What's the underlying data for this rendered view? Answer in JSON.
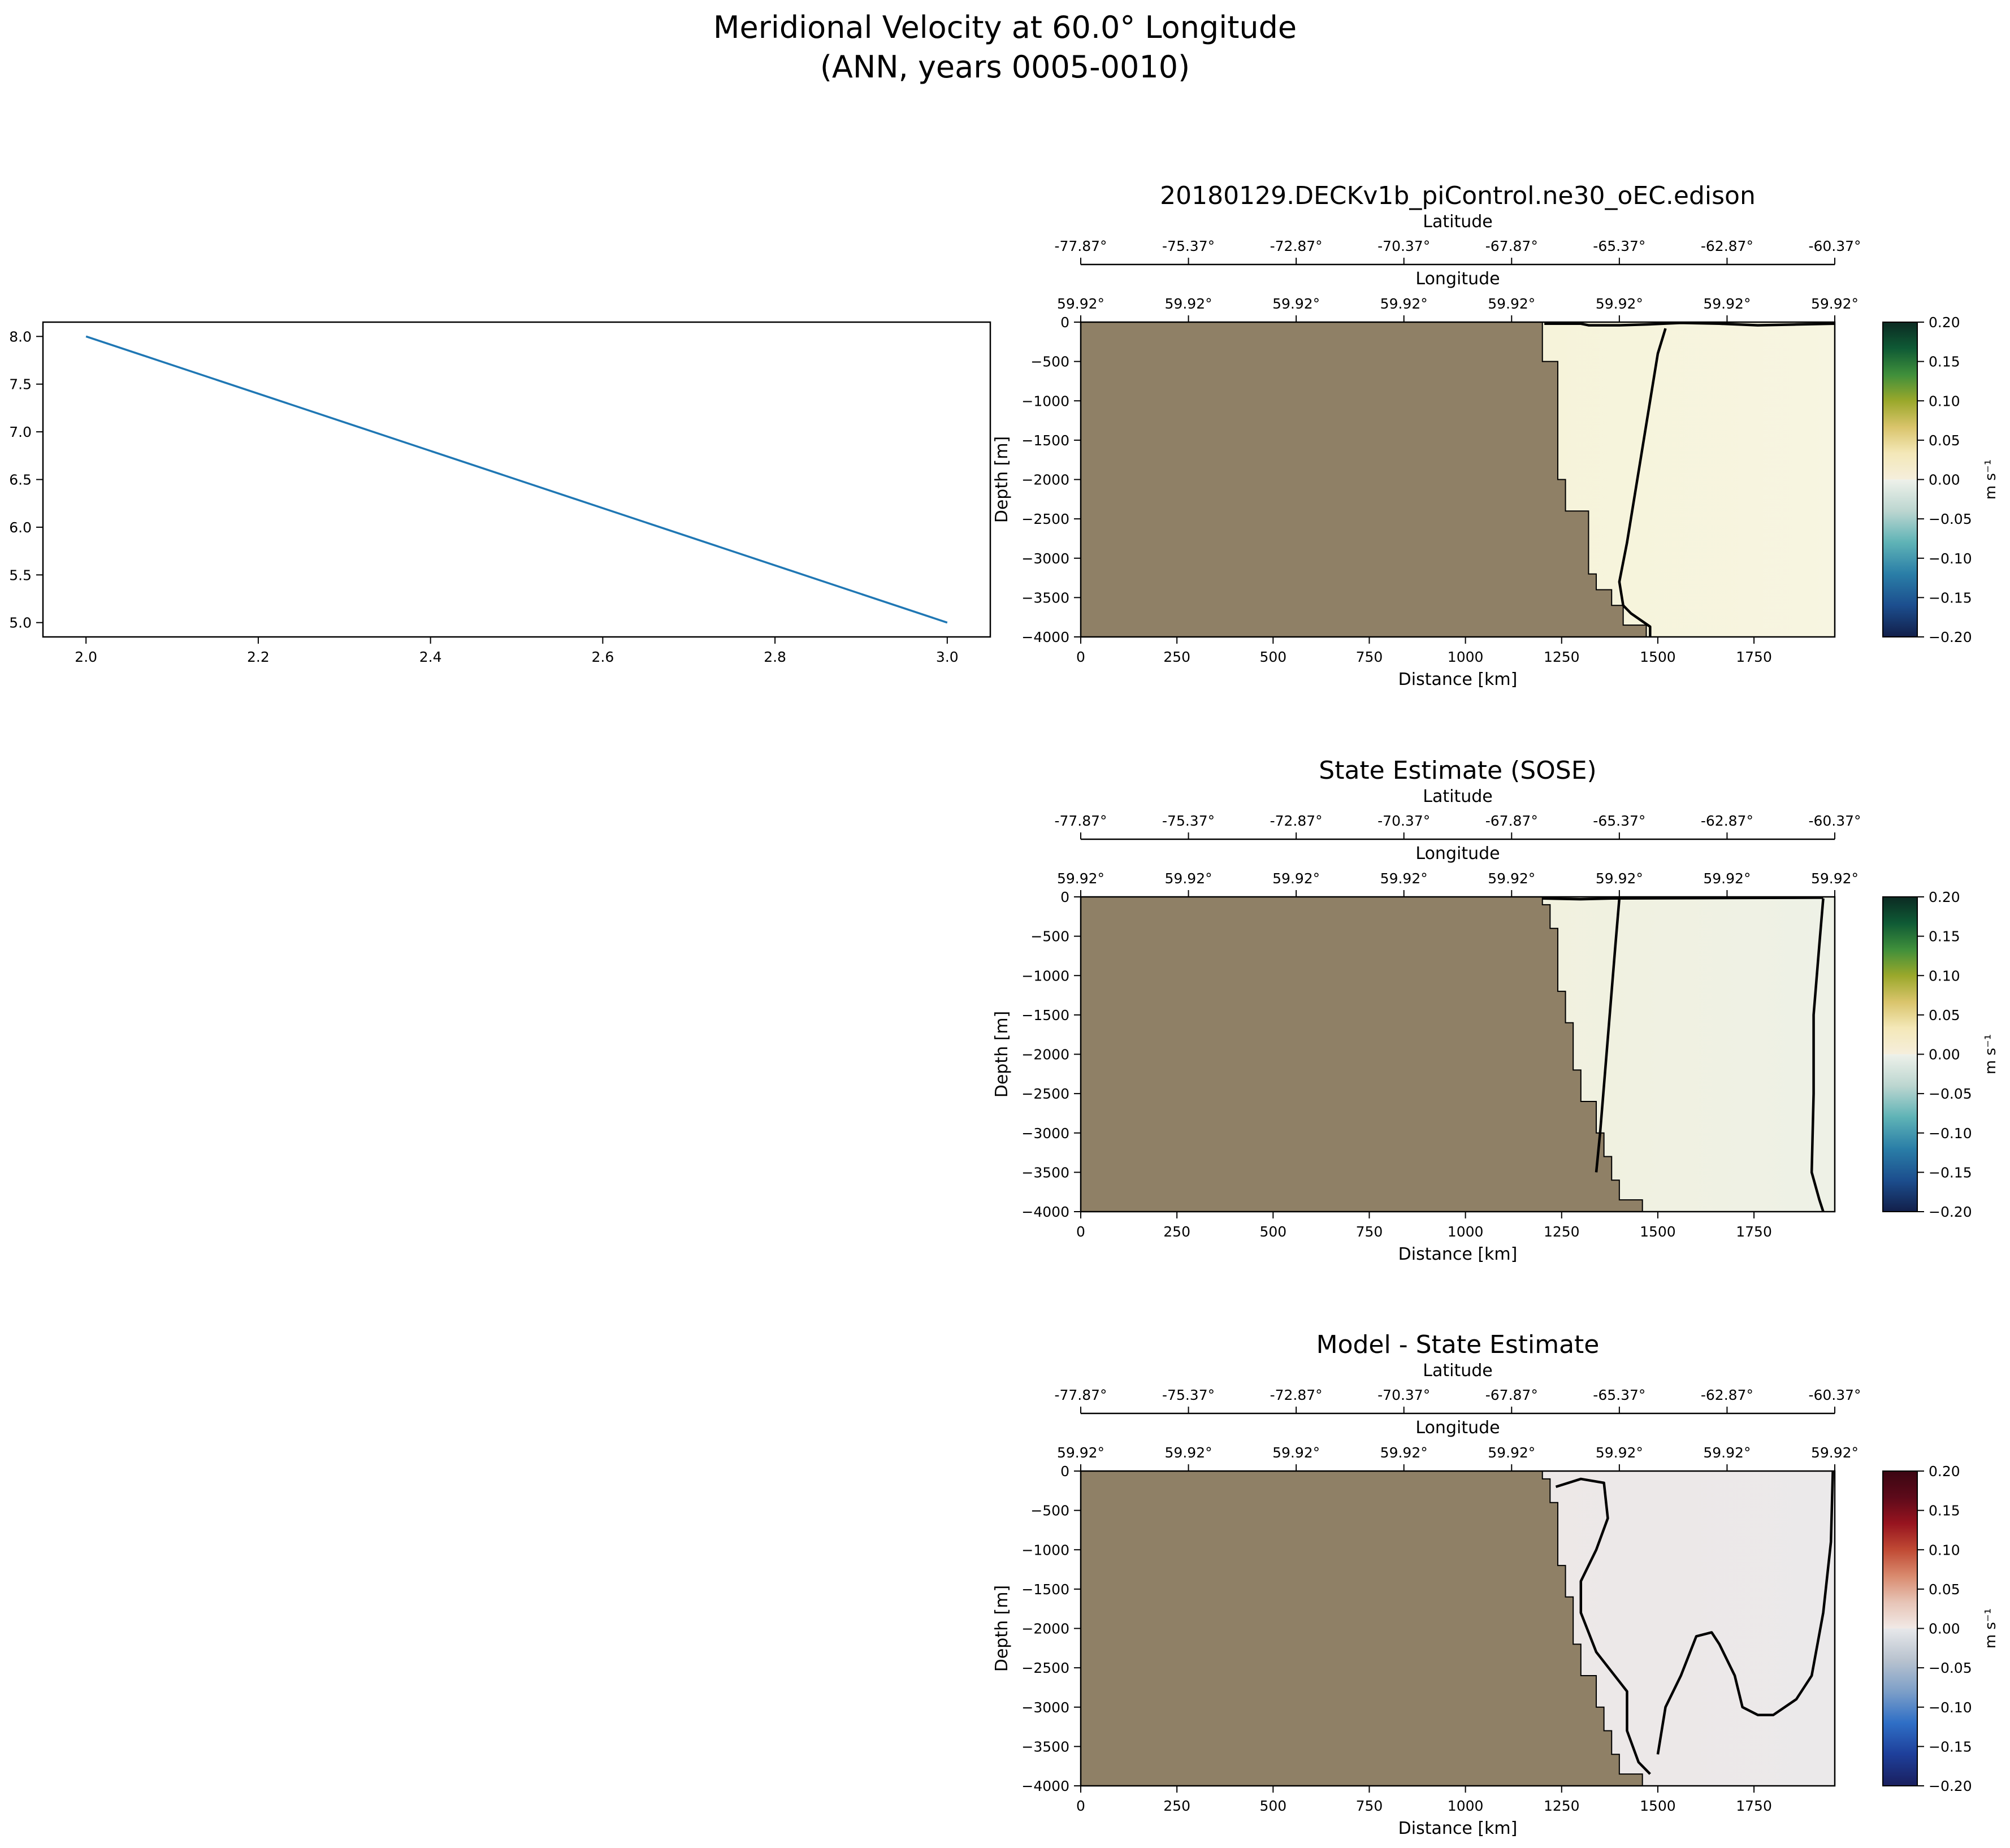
{
  "figure": {
    "title_line1": "Meridional Velocity at 60.0° Longitude",
    "title_line2": "(ANN, years 0005-0010)"
  },
  "colors": {
    "land": "#8f8066",
    "line": "#1f77b4",
    "contour": "#000000"
  },
  "chart_data": [
    {
      "type": "line",
      "title": "",
      "xlabel": "",
      "ylabel": "",
      "x": [
        2.0,
        3.0
      ],
      "y": [
        8.0,
        5.0
      ],
      "xlim": [
        1.95,
        3.05
      ],
      "ylim": [
        4.85,
        8.15
      ],
      "xticks": [
        2.0,
        2.2,
        2.4,
        2.6,
        2.8,
        3.0
      ],
      "xtick_labels": [
        "2.0",
        "2.2",
        "2.4",
        "2.6",
        "2.8",
        "3.0"
      ],
      "yticks": [
        5.0,
        5.5,
        6.0,
        6.5,
        7.0,
        7.5,
        8.0
      ],
      "ytick_labels": [
        "5.0",
        "5.5",
        "6.0",
        "6.5",
        "7.0",
        "7.5",
        "8.0"
      ]
    },
    {
      "type": "heatmap",
      "title": "20180129.DECKv1b_piControl.ne30_oEC.edison",
      "xlabel": "Distance [km]",
      "ylabel": "Depth [m]",
      "xlim": [
        0,
        1960
      ],
      "ylim": [
        -4000,
        0
      ],
      "xticks": [
        0,
        250,
        500,
        750,
        1000,
        1250,
        1500,
        1750
      ],
      "xtick_labels": [
        "0",
        "250",
        "500",
        "750",
        "1000",
        "1250",
        "1500",
        "1750"
      ],
      "yticks": [
        0,
        -500,
        -1000,
        -1500,
        -2000,
        -2500,
        -3000,
        -3500,
        -4000
      ],
      "ytick_labels": [
        "0",
        "−500",
        "−1000",
        "−1500",
        "−2000",
        "−2500",
        "−3000",
        "−3500",
        "−4000"
      ],
      "top_axis1_label": "Latitude",
      "top_axis1_ticks": [
        "-77.87°",
        "-75.37°",
        "-72.87°",
        "-70.37°",
        "-67.87°",
        "-65.37°",
        "-62.87°",
        "-60.37°"
      ],
      "top_axis2_label": "Longitude",
      "top_axis2_ticks": [
        "59.92°",
        "59.92°",
        "59.92°",
        "59.92°",
        "59.92°",
        "59.92°",
        "59.92°",
        "59.92°"
      ],
      "colorbar_label": "m s⁻¹",
      "colorbar_ticks": [
        "0.20",
        "0.15",
        "0.10",
        "0.05",
        "0.00",
        "−0.05",
        "−0.10",
        "−0.15",
        "−0.20"
      ],
      "colormap": [
        "#f5eedc",
        "#f4e8b8",
        "#d9c46b",
        "#9aa82b",
        "#3f8f3b",
        "#0f5a35",
        "#0b2a22"
      ],
      "colormap_neg": [
        "#eef1ea",
        "#bcd6d0",
        "#5fb3b6",
        "#2a7ea7",
        "#1c4e8e",
        "#121f4a"
      ],
      "land_edge": [
        [
          1200,
          0
        ],
        [
          1200,
          -500
        ],
        [
          1240,
          -500
        ],
        [
          1240,
          -2000
        ],
        [
          1260,
          -2000
        ],
        [
          1260,
          -2400
        ],
        [
          1320,
          -2400
        ],
        [
          1320,
          -3200
        ],
        [
          1340,
          -3200
        ],
        [
          1340,
          -3400
        ],
        [
          1380,
          -3400
        ],
        [
          1380,
          -3600
        ],
        [
          1410,
          -3600
        ],
        [
          1410,
          -3850
        ],
        [
          1470,
          -3850
        ],
        [
          1470,
          -4000
        ]
      ],
      "ocean_fill": "#f5f0cf",
      "ocean_east_fill": "#f7f5e1",
      "zero_contours": [
        [
          [
            1205,
            -20
          ],
          [
            1300,
            -20
          ],
          [
            1320,
            -40
          ],
          [
            1400,
            -40
          ],
          [
            1470,
            -30
          ],
          [
            1560,
            -10
          ],
          [
            1660,
            -20
          ],
          [
            1760,
            -40
          ],
          [
            1860,
            -30
          ],
          [
            1960,
            -20
          ]
        ],
        [
          [
            1520,
            -80
          ],
          [
            1500,
            -400
          ],
          [
            1480,
            -1000
          ],
          [
            1460,
            -1600
          ],
          [
            1440,
            -2200
          ],
          [
            1420,
            -2800
          ],
          [
            1400,
            -3300
          ],
          [
            1410,
            -3600
          ],
          [
            1430,
            -3700
          ],
          [
            1480,
            -3870
          ],
          [
            1480,
            -4000
          ]
        ]
      ]
    },
    {
      "type": "heatmap",
      "title": "State Estimate (SOSE)",
      "xlabel": "Distance [km]",
      "ylabel": "Depth [m]",
      "xlim": [
        0,
        1960
      ],
      "ylim": [
        -4000,
        0
      ],
      "xticks": [
        0,
        250,
        500,
        750,
        1000,
        1250,
        1500,
        1750
      ],
      "xtick_labels": [
        "0",
        "250",
        "500",
        "750",
        "1000",
        "1250",
        "1500",
        "1750"
      ],
      "yticks": [
        0,
        -500,
        -1000,
        -1500,
        -2000,
        -2500,
        -3000,
        -3500,
        -4000
      ],
      "ytick_labels": [
        "0",
        "−500",
        "−1000",
        "−1500",
        "−2000",
        "−2500",
        "−3000",
        "−3500",
        "−4000"
      ],
      "top_axis1_label": "Latitude",
      "top_axis1_ticks": [
        "-77.87°",
        "-75.37°",
        "-72.87°",
        "-70.37°",
        "-67.87°",
        "-65.37°",
        "-62.87°",
        "-60.37°"
      ],
      "top_axis2_label": "Longitude",
      "top_axis2_ticks": [
        "59.92°",
        "59.92°",
        "59.92°",
        "59.92°",
        "59.92°",
        "59.92°",
        "59.92°",
        "59.92°"
      ],
      "colorbar_label": "m s⁻¹",
      "colorbar_ticks": [
        "0.20",
        "0.15",
        "0.10",
        "0.05",
        "0.00",
        "−0.05",
        "−0.10",
        "−0.15",
        "−0.20"
      ],
      "colormap": [
        "#f5eedc",
        "#f4e8b8",
        "#d9c46b",
        "#9aa82b",
        "#3f8f3b",
        "#0f5a35",
        "#0b2a22"
      ],
      "colormap_neg": [
        "#eef1ea",
        "#bcd6d0",
        "#5fb3b6",
        "#2a7ea7",
        "#1c4e8e",
        "#121f4a"
      ],
      "land_edge": [
        [
          1200,
          0
        ],
        [
          1200,
          -100
        ],
        [
          1220,
          -100
        ],
        [
          1220,
          -400
        ],
        [
          1240,
          -400
        ],
        [
          1240,
          -1200
        ],
        [
          1260,
          -1200
        ],
        [
          1260,
          -1600
        ],
        [
          1280,
          -1600
        ],
        [
          1280,
          -2200
        ],
        [
          1300,
          -2200
        ],
        [
          1300,
          -2600
        ],
        [
          1340,
          -2600
        ],
        [
          1340,
          -3000
        ],
        [
          1360,
          -3000
        ],
        [
          1360,
          -3300
        ],
        [
          1380,
          -3300
        ],
        [
          1380,
          -3600
        ],
        [
          1400,
          -3600
        ],
        [
          1400,
          -3850
        ],
        [
          1460,
          -3850
        ],
        [
          1460,
          -4000
        ]
      ],
      "ocean_fill": "#f6f1d3",
      "ocean_east_fill": "#eef1e6",
      "zero_contours": [
        [
          [
            1200,
            -20
          ],
          [
            1300,
            -30
          ],
          [
            1380,
            -20
          ],
          [
            1930,
            -10
          ]
        ],
        [
          [
            1400,
            -20
          ],
          [
            1390,
            -600
          ],
          [
            1380,
            -1200
          ],
          [
            1370,
            -1800
          ],
          [
            1360,
            -2400
          ],
          [
            1350,
            -3000
          ],
          [
            1340,
            -3500
          ]
        ],
        [
          [
            1930,
            -20
          ],
          [
            1920,
            -600
          ],
          [
            1905,
            -1500
          ],
          [
            1905,
            -2500
          ],
          [
            1900,
            -3500
          ],
          [
            1920,
            -3850
          ],
          [
            1930,
            -4000
          ]
        ]
      ]
    },
    {
      "type": "heatmap",
      "title": "Model - State Estimate",
      "xlabel": "Distance [km]",
      "ylabel": "Depth [m]",
      "xlim": [
        0,
        1960
      ],
      "ylim": [
        -4000,
        0
      ],
      "xticks": [
        0,
        250,
        500,
        750,
        1000,
        1250,
        1500,
        1750
      ],
      "xtick_labels": [
        "0",
        "250",
        "500",
        "750",
        "1000",
        "1250",
        "1500",
        "1750"
      ],
      "yticks": [
        0,
        -500,
        -1000,
        -1500,
        -2000,
        -2500,
        -3000,
        -3500,
        -4000
      ],
      "ytick_labels": [
        "0",
        "−500",
        "−1000",
        "−1500",
        "−2000",
        "−2500",
        "−3000",
        "−3500",
        "−4000"
      ],
      "top_axis1_label": "Latitude",
      "top_axis1_ticks": [
        "-77.87°",
        "-75.37°",
        "-72.87°",
        "-70.37°",
        "-67.87°",
        "-65.37°",
        "-62.87°",
        "-60.37°"
      ],
      "top_axis2_label": "Longitude",
      "top_axis2_ticks": [
        "59.92°",
        "59.92°",
        "59.92°",
        "59.92°",
        "59.92°",
        "59.92°",
        "59.92°",
        "59.92°"
      ],
      "colorbar_label": "m s⁻¹",
      "colorbar_ticks": [
        "0.20",
        "0.15",
        "0.10",
        "0.05",
        "0.00",
        "−0.05",
        "−0.10",
        "−0.15",
        "−0.20"
      ],
      "colormap": [
        "#f1e9e6",
        "#e7c4b6",
        "#d98a6e",
        "#c04a34",
        "#97141f",
        "#5d0a1a",
        "#3b0612"
      ],
      "colormap_neg": [
        "#e7e8ea",
        "#b9c3cf",
        "#7d9fc8",
        "#2f6fc6",
        "#1e3f9a",
        "#1a1f5e"
      ],
      "land_edge": [
        [
          1200,
          0
        ],
        [
          1200,
          -100
        ],
        [
          1220,
          -100
        ],
        [
          1220,
          -400
        ],
        [
          1240,
          -400
        ],
        [
          1240,
          -1200
        ],
        [
          1260,
          -1200
        ],
        [
          1260,
          -1600
        ],
        [
          1280,
          -1600
        ],
        [
          1280,
          -2200
        ],
        [
          1300,
          -2200
        ],
        [
          1300,
          -2600
        ],
        [
          1340,
          -2600
        ],
        [
          1340,
          -3000
        ],
        [
          1360,
          -3000
        ],
        [
          1360,
          -3300
        ],
        [
          1380,
          -3300
        ],
        [
          1380,
          -3600
        ],
        [
          1400,
          -3600
        ],
        [
          1400,
          -3850
        ],
        [
          1460,
          -3850
        ],
        [
          1460,
          -4000
        ]
      ],
      "ocean_fill": "#f0e6e2",
      "ocean_east_fill": "#ebe9ea",
      "zero_contours": [
        [
          [
            1235,
            -200
          ],
          [
            1300,
            -100
          ],
          [
            1360,
            -150
          ],
          [
            1370,
            -600
          ],
          [
            1340,
            -1000
          ],
          [
            1300,
            -1400
          ],
          [
            1300,
            -1800
          ],
          [
            1340,
            -2300
          ],
          [
            1420,
            -2800
          ],
          [
            1420,
            -3300
          ],
          [
            1450,
            -3700
          ],
          [
            1480,
            -3850
          ]
        ],
        [
          [
            1500,
            -3600
          ],
          [
            1520,
            -3000
          ],
          [
            1560,
            -2600
          ],
          [
            1600,
            -2100
          ],
          [
            1640,
            -2050
          ],
          [
            1660,
            -2200
          ],
          [
            1700,
            -2600
          ],
          [
            1720,
            -3000
          ],
          [
            1760,
            -3100
          ],
          [
            1800,
            -3100
          ],
          [
            1860,
            -2900
          ],
          [
            1900,
            -2600
          ],
          [
            1930,
            -1800
          ],
          [
            1950,
            -900
          ],
          [
            1955,
            0
          ]
        ]
      ]
    }
  ]
}
